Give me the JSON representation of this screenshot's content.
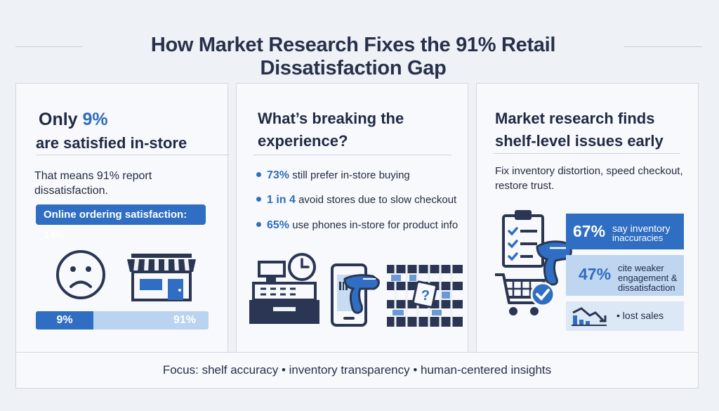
{
  "title": "How Market Research Fixes the 91% Retail Dissatisfaction Gap",
  "card1": {
    "heading_prefix": "Only ",
    "heading_highlight": "9%",
    "heading_line2": "are satisfied in-store",
    "subtext": "That means 91% report dissatisfaction.",
    "pill": "Online ordering satisfaction: 14%",
    "icons": [
      "sad-face-icon",
      "storefront-icon"
    ],
    "bar": {
      "satisfied_label": "9%",
      "dissatisfied_label": "91%",
      "satisfied_fraction": 0.09
    },
    "colors": {
      "accent": "#2f6ec2",
      "light": "#b9d3f1"
    }
  },
  "card2": {
    "heading_line1": "What’s breaking the",
    "heading_line2": "experience?",
    "bullets": [
      {
        "num": "73%",
        "text": " still prefer in-store buying"
      },
      {
        "num": "1 in 4",
        "text": " avoid stores due to slow checkout"
      },
      {
        "num": "65%",
        "text": " use phones in-store for product info"
      }
    ],
    "icons": [
      "cash-register-icon",
      "clock-icon",
      "phone-scanner-icon",
      "shelf-question-icon"
    ],
    "shelf_question_mark": "?"
  },
  "card3": {
    "heading_line1": "Market research finds",
    "heading_line2": "shelf-level issues early",
    "subtext_line1": "Fix inventory distortion, speed checkout,",
    "subtext_line2": "restore trust.",
    "stats": [
      {
        "num": "67%",
        "line1": "say inventory",
        "line2": "inaccuracies",
        "line3": ""
      },
      {
        "num": "47%",
        "line1": "cite weaker",
        "line2": "engagement &",
        "line3": "dissatisfaction"
      }
    ],
    "lost_sales": "• lost sales",
    "icons": [
      "clipboard-checklist-icon",
      "barcode-scanner-icon",
      "shopping-cart-check-icon",
      "declining-chart-icon"
    ]
  },
  "footer": "Focus: shelf accuracy • inventory transparency • human-centered insights"
}
